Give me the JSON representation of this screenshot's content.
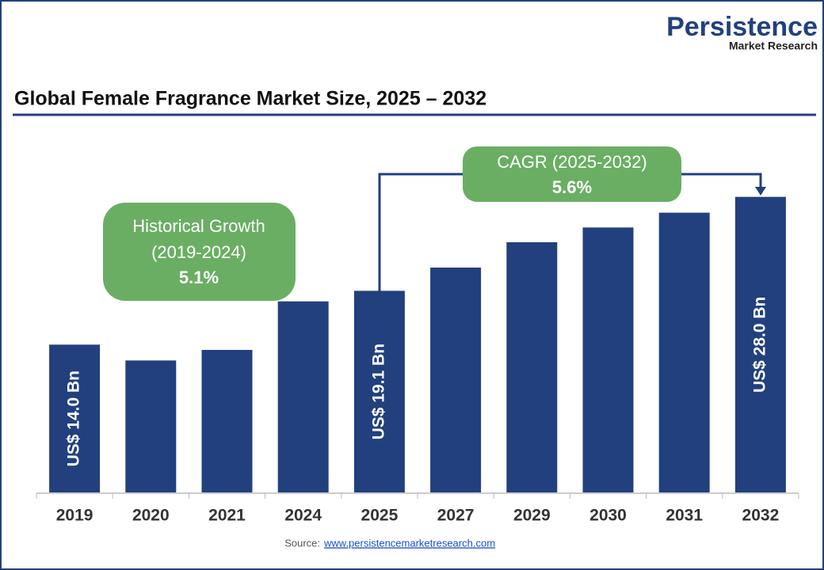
{
  "logo": {
    "name": "Persistence",
    "tagline": "Market Research"
  },
  "chart_data": {
    "type": "bar",
    "title": "Global Female Fragrance Market Size, 2025 – 2032",
    "categories": [
      "2019",
      "2020",
      "2021",
      "2024",
      "2025",
      "2027",
      "2029",
      "2030",
      "2031",
      "2032"
    ],
    "values": [
      14.0,
      12.5,
      13.5,
      18.1,
      19.1,
      21.3,
      23.7,
      25.1,
      26.5,
      28.0
    ],
    "value_labels": [
      "US$ 14.0 Bn",
      null,
      null,
      null,
      "US$ 19.1 Bn",
      null,
      null,
      null,
      null,
      "US$ 28.0 Bn"
    ],
    "color": "#22407e",
    "ylim": [
      0,
      30
    ],
    "annotations": {
      "historical": [
        "Historical Growth",
        "(2019-2024)",
        "5.1%"
      ],
      "cagr": [
        "CAGR (2025-2032)",
        "5.6%"
      ]
    },
    "source": {
      "label": "Source:",
      "url": "www.persistencemarketresearch.com"
    }
  }
}
